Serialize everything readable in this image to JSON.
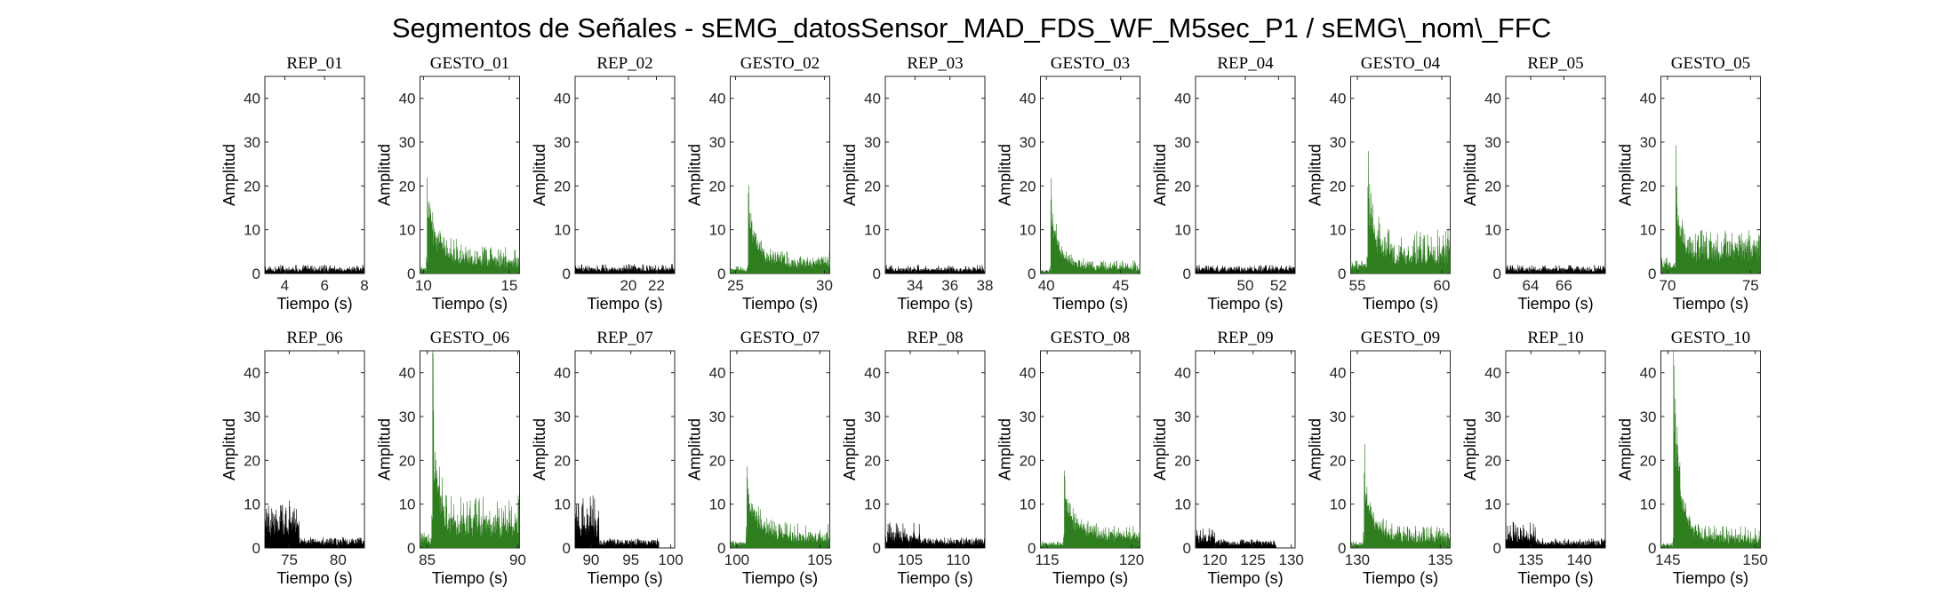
{
  "title": "Segmentos de Señales - sEMG_datosSensor_MAD_FDS_WF_M5sec_P1 / sEMG\\_nom\\_FFC",
  "colors": {
    "rep": "#000000",
    "gesture": "#2e7d1f"
  },
  "chart_data": [
    {
      "type": "area",
      "title": "REP_01",
      "kind": "rep",
      "xlim": [
        3,
        8
      ],
      "xticks": [
        4,
        6,
        8
      ],
      "ylim": [
        0,
        45
      ],
      "yticks": [
        0,
        10,
        20,
        30,
        40
      ],
      "xlabel": "Tiempo (s)",
      "ylabel": "Amplitud",
      "base": 1.0,
      "peak": 2.0,
      "burst": [],
      "decay": 0
    },
    {
      "type": "area",
      "title": "GESTO_01",
      "kind": "gesture",
      "xlim": [
        9.8,
        15.6
      ],
      "xticks": [
        10,
        15
      ],
      "ylim": [
        0,
        45
      ],
      "yticks": [
        0,
        10,
        20,
        30,
        40
      ],
      "xlabel": "Tiempo (s)",
      "ylabel": "Amplitud",
      "base": 3.0,
      "peak": 6.0,
      "burst": [
        10.2,
        13.5
      ],
      "decay": 0.9
    },
    {
      "type": "area",
      "title": "REP_02",
      "kind": "rep",
      "xlim": [
        16.2,
        23.3
      ],
      "xticks": [
        20,
        22
      ],
      "ylim": [
        0,
        45
      ],
      "yticks": [
        0,
        10,
        20,
        30,
        40
      ],
      "xlabel": "Tiempo (s)",
      "ylabel": "Amplitud",
      "base": 1.1,
      "peak": 2.2,
      "burst": [],
      "decay": 0
    },
    {
      "type": "area",
      "title": "GESTO_02",
      "kind": "gesture",
      "xlim": [
        24.7,
        30.3
      ],
      "xticks": [
        25,
        30
      ],
      "ylim": [
        0,
        45
      ],
      "yticks": [
        0,
        10,
        20,
        30,
        40
      ],
      "xlabel": "Tiempo (s)",
      "ylabel": "Amplitud",
      "base": 2.8,
      "peak": 5.0,
      "burst": [
        25.7,
        16
      ],
      "decay": 0.5
    },
    {
      "type": "area",
      "title": "REP_03",
      "kind": "rep",
      "xlim": [
        32.3,
        38
      ],
      "xticks": [
        34,
        36,
        38
      ],
      "ylim": [
        0,
        45
      ],
      "yticks": [
        0,
        10,
        20,
        30,
        40
      ],
      "xlabel": "Tiempo (s)",
      "ylabel": "Amplitud",
      "base": 1.0,
      "peak": 2.0,
      "burst": [],
      "decay": 0
    },
    {
      "type": "area",
      "title": "GESTO_03",
      "kind": "gesture",
      "xlim": [
        39.6,
        46.3
      ],
      "xticks": [
        40,
        45
      ],
      "ylim": [
        0,
        45
      ],
      "yticks": [
        0,
        10,
        20,
        30,
        40
      ],
      "xlabel": "Tiempo (s)",
      "ylabel": "Amplitud",
      "base": 1.6,
      "peak": 3.0,
      "burst": [
        40.3,
        16
      ],
      "decay": 0.6
    },
    {
      "type": "area",
      "title": "REP_04",
      "kind": "rep",
      "xlim": [
        47,
        53
      ],
      "xticks": [
        50,
        52
      ],
      "ylim": [
        0,
        45
      ],
      "yticks": [
        0,
        10,
        20,
        30,
        40
      ],
      "xlabel": "Tiempo (s)",
      "ylabel": "Amplitud",
      "base": 1.1,
      "peak": 2.0,
      "burst": [],
      "decay": 0
    },
    {
      "type": "area",
      "title": "GESTO_04",
      "kind": "gesture",
      "xlim": [
        54.6,
        60.5
      ],
      "xticks": [
        55,
        60
      ],
      "ylim": [
        0,
        45
      ],
      "yticks": [
        0,
        10,
        20,
        30,
        40
      ],
      "xlabel": "Tiempo (s)",
      "ylabel": "Amplitud",
      "base": 5.0,
      "peak": 10.0,
      "burst": [
        55.6,
        18
      ],
      "decay": 0.4
    },
    {
      "type": "area",
      "title": "REP_05",
      "kind": "rep",
      "xlim": [
        62.5,
        68.5
      ],
      "xticks": [
        64,
        66
      ],
      "ylim": [
        0,
        45
      ],
      "yticks": [
        0,
        10,
        20,
        30,
        40
      ],
      "xlabel": "Tiempo (s)",
      "ylabel": "Amplitud",
      "base": 1.0,
      "peak": 2.0,
      "burst": [],
      "decay": 0
    },
    {
      "type": "area",
      "title": "GESTO_05",
      "kind": "gesture",
      "xlim": [
        69.6,
        75.6
      ],
      "xticks": [
        70,
        75
      ],
      "ylim": [
        0,
        45
      ],
      "yticks": [
        0,
        10,
        20,
        30,
        40
      ],
      "xlabel": "Tiempo (s)",
      "ylabel": "Amplitud",
      "base": 6.0,
      "peak": 10.0,
      "burst": [
        70.5,
        15
      ],
      "decay": 0.3
    },
    {
      "type": "area",
      "title": "REP_06",
      "kind": "rep",
      "xlim": [
        72.5,
        82.7
      ],
      "xticks": [
        75,
        80
      ],
      "ylim": [
        0,
        45
      ],
      "yticks": [
        0,
        10,
        20,
        30,
        40
      ],
      "xlabel": "Tiempo (s)",
      "ylabel": "Amplitud",
      "base": 1.6,
      "peak": 2.5,
      "burst": [],
      "decay": 0,
      "early": [
        72.5,
        76,
        7,
        11
      ]
    },
    {
      "type": "area",
      "title": "GESTO_06",
      "kind": "gesture",
      "xlim": [
        84.6,
        90.1
      ],
      "xticks": [
        85,
        90
      ],
      "ylim": [
        0,
        45
      ],
      "yticks": [
        0,
        10,
        20,
        30,
        40
      ],
      "xlabel": "Tiempo (s)",
      "ylabel": "Amplitud",
      "base": 6.0,
      "peak": 12.0,
      "burst": [
        85.3,
        29
      ],
      "decay": 0.3
    },
    {
      "type": "area",
      "title": "REP_07",
      "kind": "rep",
      "xlim": [
        88,
        100.5
      ],
      "xticks": [
        90,
        95,
        100
      ],
      "ylim": [
        0,
        45
      ],
      "yticks": [
        0,
        10,
        20,
        30,
        40
      ],
      "xlabel": "Tiempo (s)",
      "ylabel": "Amplitud",
      "base": 1.4,
      "peak": 2.2,
      "burst": [],
      "decay": 0,
      "end": 98.5,
      "early": [
        88,
        91,
        6,
        12
      ]
    },
    {
      "type": "area",
      "title": "GESTO_07",
      "kind": "gesture",
      "xlim": [
        99.6,
        105.6
      ],
      "xticks": [
        100,
        105
      ],
      "ylim": [
        0,
        45
      ],
      "yticks": [
        0,
        10,
        20,
        30,
        40
      ],
      "xlabel": "Tiempo (s)",
      "ylabel": "Amplitud",
      "base": 2.8,
      "peak": 5.5,
      "burst": [
        100.6,
        14
      ],
      "decay": 0.7
    },
    {
      "type": "area",
      "title": "REP_08",
      "kind": "rep",
      "xlim": [
        102.4,
        112.8
      ],
      "xticks": [
        105,
        110
      ],
      "ylim": [
        0,
        45
      ],
      "yticks": [
        0,
        10,
        20,
        30,
        40
      ],
      "xlabel": "Tiempo (s)",
      "ylabel": "Amplitud",
      "base": 1.5,
      "peak": 2.5,
      "burst": [],
      "decay": 0,
      "early": [
        102.4,
        106,
        3,
        6
      ]
    },
    {
      "type": "area",
      "title": "GESTO_08",
      "kind": "gesture",
      "xlim": [
        114.6,
        120.5
      ],
      "xticks": [
        115,
        120
      ],
      "ylim": [
        0,
        45
      ],
      "yticks": [
        0,
        10,
        20,
        30,
        40
      ],
      "xlabel": "Tiempo (s)",
      "ylabel": "Amplitud",
      "base": 2.8,
      "peak": 5.0,
      "burst": [
        116,
        11
      ],
      "decay": 0.8
    },
    {
      "type": "area",
      "title": "REP_09",
      "kind": "rep",
      "xlim": [
        117.5,
        130.5
      ],
      "xticks": [
        120,
        125,
        130
      ],
      "ylim": [
        0,
        45
      ],
      "yticks": [
        0,
        10,
        20,
        30,
        40
      ],
      "xlabel": "Tiempo (s)",
      "ylabel": "Amplitud",
      "base": 1.2,
      "peak": 2.0,
      "burst": [],
      "decay": 0,
      "end": 128,
      "early": [
        117.5,
        120,
        2.5,
        5
      ]
    },
    {
      "type": "area",
      "title": "GESTO_09",
      "kind": "gesture",
      "xlim": [
        129.6,
        135.6
      ],
      "xticks": [
        130,
        135
      ],
      "ylim": [
        0,
        45
      ],
      "yticks": [
        0,
        10,
        20,
        30,
        40
      ],
      "xlabel": "Tiempo (s)",
      "ylabel": "Amplitud",
      "base": 2.6,
      "peak": 5.0,
      "burst": [
        130.4,
        16
      ],
      "decay": 0.6
    },
    {
      "type": "area",
      "title": "REP_10",
      "kind": "rep",
      "xlim": [
        132.4,
        142.7
      ],
      "xticks": [
        135,
        140
      ],
      "ylim": [
        0,
        45
      ],
      "yticks": [
        0,
        10,
        20,
        30,
        40
      ],
      "xlabel": "Tiempo (s)",
      "ylabel": "Amplitud",
      "base": 1.3,
      "peak": 2.2,
      "burst": [],
      "decay": 0,
      "early": [
        132.4,
        135.5,
        3,
        6
      ]
    },
    {
      "type": "area",
      "title": "GESTO_10",
      "kind": "gesture",
      "xlim": [
        144.6,
        150.3
      ],
      "xticks": [
        145,
        150
      ],
      "ylim": [
        0,
        45
      ],
      "yticks": [
        0,
        10,
        20,
        30,
        40
      ],
      "xlabel": "Tiempo (s)",
      "ylabel": "Amplitud",
      "base": 2.4,
      "peak": 5.0,
      "burst": [
        145.3,
        45
      ],
      "decay": 0.4
    }
  ]
}
